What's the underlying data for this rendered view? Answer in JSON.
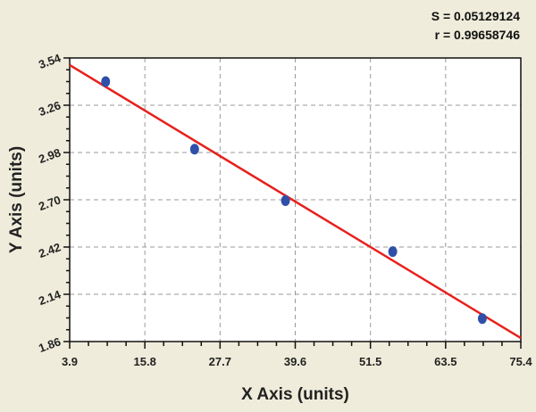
{
  "chart_data": {
    "type": "scatter",
    "title": "",
    "xlabel": "X Axis (units)",
    "ylabel": "Y Axis (units)",
    "xlim": [
      3.9,
      75.4
    ],
    "ylim": [
      1.86,
      3.54
    ],
    "xticks": [
      "3.9",
      "15.8",
      "27.7",
      "39.6",
      "51.5",
      "63.5",
      "75.4"
    ],
    "yticks": [
      "1.86",
      "2.14",
      "2.42",
      "2.70",
      "2.98",
      "3.26",
      "3.54"
    ],
    "grid": true,
    "annotations": {
      "s": "S = 0.05129124",
      "r": "r = 0.99658746"
    },
    "points": {
      "x": [
        9.6,
        23.7,
        38.1,
        55.1,
        69.3
      ],
      "y": [
        3.4,
        3.0,
        2.695,
        2.393,
        1.996
      ]
    },
    "fit_line": {
      "x": [
        3.9,
        75.4
      ],
      "y": [
        3.498,
        1.881
      ]
    },
    "colors": {
      "points": "#2f4fa8",
      "fit_line": "#e8201c",
      "background": "#efecdb",
      "plot_bg": "#ffffff"
    }
  }
}
